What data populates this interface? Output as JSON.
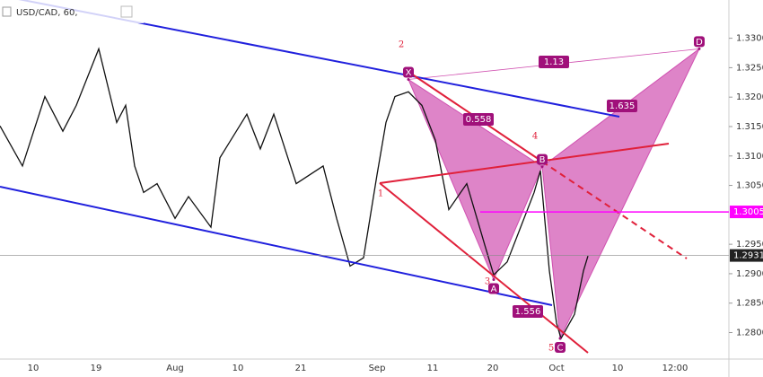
{
  "chart_data": {
    "type": "line",
    "title": "USD/CAD, 60,",
    "series": [
      {
        "name": "USD/CAD",
        "color": "#111111",
        "values": [
          1.3151,
          1.3083,
          1.3201,
          1.3142,
          1.3186,
          1.3282,
          1.3157,
          1.3186,
          1.3083,
          1.3038,
          1.3053,
          1.2994,
          1.3031,
          1.2979,
          1.3097,
          1.3171,
          1.3112,
          1.3171,
          1.3053,
          1.3083,
          1.2994,
          1.2913,
          1.2927,
          1.3068,
          1.3157,
          1.3201,
          1.3209,
          1.3186,
          1.3127,
          1.3009,
          1.3053,
          1.2949,
          1.2898,
          1.292,
          1.2979,
          1.3038,
          1.3075,
          1.2905,
          1.2816,
          1.279,
          1.2831,
          1.2905,
          1.293
        ]
      }
    ],
    "x_labels": [
      "10",
      "19",
      "Aug",
      "10",
      "21",
      "Sep",
      "11",
      "20",
      "Oct",
      "10",
      "12:00"
    ],
    "ylim": [
      1.2755,
      1.3365
    ],
    "yticks": [
      {
        "value": 1.33,
        "label": "1.3300"
      },
      {
        "value": 1.325,
        "label": "1.3250"
      },
      {
        "value": 1.32,
        "label": "1.3200"
      },
      {
        "value": 1.315,
        "label": "1.3150"
      },
      {
        "value": 1.31,
        "label": "1.3100"
      },
      {
        "value": 1.305,
        "label": "1.3050"
      },
      {
        "value": 1.295,
        "label": "1.2950"
      },
      {
        "value": 1.29,
        "label": "1.2900"
      },
      {
        "value": 1.285,
        "label": "1.2850"
      },
      {
        "value": 1.28,
        "label": "1.2800"
      }
    ],
    "level_line": {
      "value": 1.3005,
      "label": "1.3005",
      "color": "#ff00ff"
    },
    "current_price": {
      "value": 1.2931,
      "label": "1.2931"
    },
    "pattern": {
      "color": "#d050b0",
      "points": [
        {
          "label": "X",
          "value": 1.323
        },
        {
          "label": "A",
          "value": 1.289
        },
        {
          "label": "B",
          "value": 1.3082
        },
        {
          "label": "C",
          "value": 1.279
        },
        {
          "label": "D",
          "value": 1.3282
        }
      ],
      "ratios": [
        "1.13",
        "0.558",
        "1.635",
        "1.556"
      ]
    },
    "waves": [
      "2",
      "1",
      "3",
      "4",
      "5"
    ]
  }
}
